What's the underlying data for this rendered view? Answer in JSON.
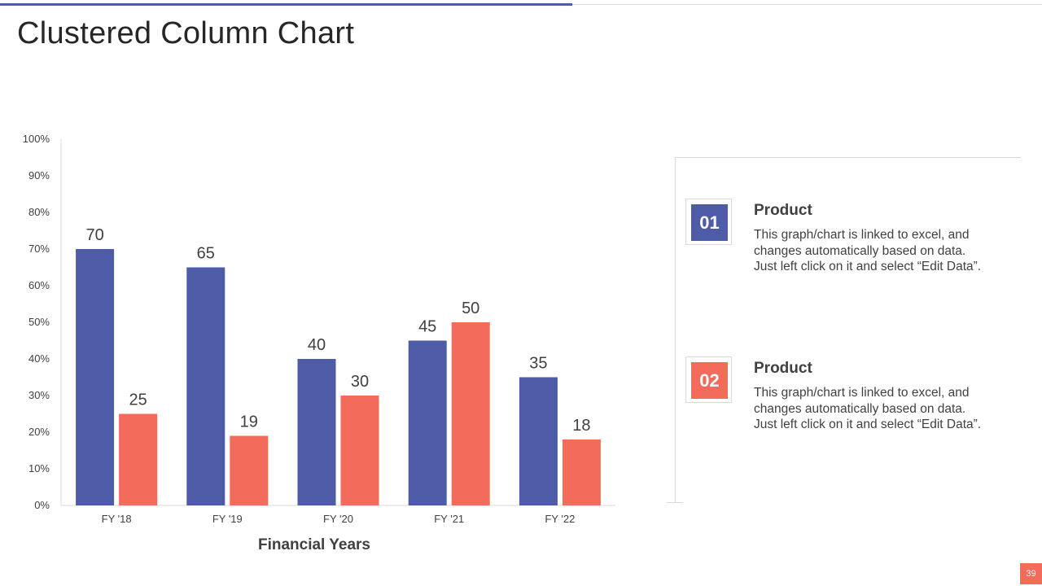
{
  "slide": {
    "title": "Clustered Column Chart",
    "page_number": "39"
  },
  "colors": {
    "series1": "#4e5ba6",
    "series2": "#f26b5b",
    "accent_line": "#4e5ba6",
    "grid_axis": "#d9d9d9"
  },
  "legend_items": [
    {
      "number": "01",
      "title": "Product",
      "lines": [
        "This graph/chart is linked to excel, and",
        "changes automatically based on data.",
        "Just left click on it and select “Edit Data”."
      ],
      "color": "#4e5ba6"
    },
    {
      "number": "02",
      "title": "Product",
      "lines": [
        "This graph/chart is linked to excel, and",
        "changes automatically based on data.",
        "Just left click on it and select “Edit Data”."
      ],
      "color": "#f26b5b"
    }
  ],
  "chart_data": {
    "type": "bar",
    "title": "",
    "xlabel": "Financial Years",
    "ylabel": "",
    "categories": [
      "FY '18",
      "FY '19",
      "FY '20",
      "FY '21",
      "FY '22"
    ],
    "series": [
      {
        "name": "Product 01",
        "values": [
          70,
          65,
          40,
          45,
          35
        ]
      },
      {
        "name": "Product 02",
        "values": [
          25,
          19,
          30,
          50,
          18
        ]
      }
    ],
    "ylim": [
      0,
      100
    ],
    "y_ticks": [
      "0%",
      "10%",
      "20%",
      "30%",
      "40%",
      "50%",
      "60%",
      "70%",
      "80%",
      "90%",
      "100%"
    ],
    "grid": false,
    "data_labels": true
  }
}
